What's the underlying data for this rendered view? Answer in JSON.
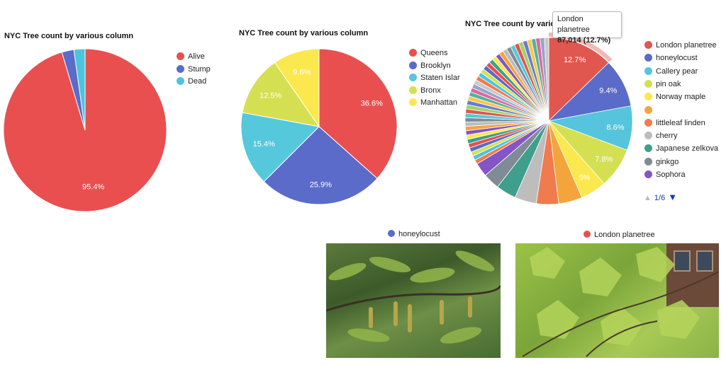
{
  "chart_data": [
    {
      "type": "pie",
      "title": "NYC Tree count by various column",
      "categories": [
        "Alive",
        "Stump",
        "Dead"
      ],
      "values": [
        95.4,
        2.4,
        2.2
      ],
      "value_labels": [
        "95.4%",
        "",
        ""
      ],
      "colors": [
        "#e94f4f",
        "#5a6bc9",
        "#4cc4dc"
      ],
      "legend_position": "right"
    },
    {
      "type": "pie",
      "title": "NYC Tree count by various column",
      "categories": [
        "Queens",
        "Brooklyn",
        "Staten Islar",
        "Bronx",
        "Manhattan"
      ],
      "values": [
        36.6,
        25.9,
        15.4,
        12.5,
        9.6
      ],
      "value_labels": [
        "36.6%",
        "25.9%",
        "15.4%",
        "12.5%",
        "9.6%"
      ],
      "colors": [
        "#e94f4f",
        "#5a6bc9",
        "#56c8dc",
        "#d4e052",
        "#fae84e"
      ],
      "legend_position": "right"
    },
    {
      "type": "pie",
      "title": "NYC Tree count by various column",
      "categories": [
        "London planetree",
        "honeylocust",
        "Callery pear",
        "pin oak",
        "Norway maple",
        "",
        "littleleaf linden",
        "cherry",
        "Japanese zelkova",
        "ginkgo",
        "Sophora"
      ],
      "values": [
        12.7,
        9.4,
        8.6,
        7.8,
        5.0,
        4.6,
        4.3,
        4.2,
        3.9,
        3.2,
        2.7
      ],
      "value_labels": [
        "12.7%",
        "9.4%",
        "8.6%",
        "7.8%",
        "5%",
        "",
        "",
        "",
        "",
        "",
        ""
      ],
      "colors": [
        "#e0574f",
        "#5a6bc9",
        "#56c4dc",
        "#d4e052",
        "#fae84e",
        "#f3a53c",
        "#ef7b4f",
        "#bdbdbd",
        "#3f9e8c",
        "#7f8c97",
        "#8455c4"
      ],
      "other_slices_percent": 33.6,
      "legend_position": "right",
      "legend_page": "1/6",
      "tooltip": {
        "label": "London planetree",
        "value": "87,014 (12.7%)"
      }
    }
  ],
  "photos": [
    {
      "caption": "honeylocust",
      "color": "#5a6bc9"
    },
    {
      "caption": "London planetree",
      "color": "#e94f4f"
    }
  ]
}
